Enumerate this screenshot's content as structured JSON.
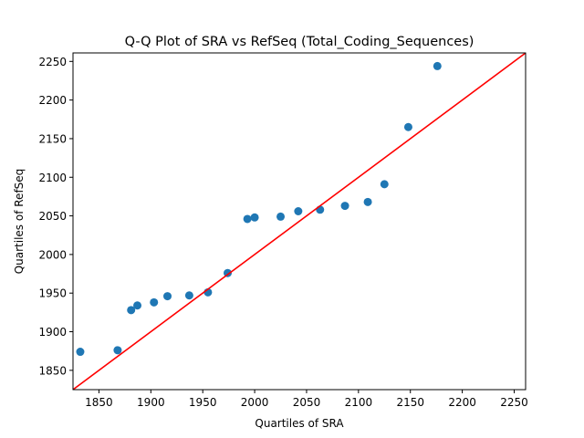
{
  "chart_data": {
    "type": "scatter",
    "title": "Q-Q Plot of SRA vs RefSeq (Total_Coding_Sequences)",
    "xlabel": "Quartiles of SRA",
    "ylabel": "Quartiles of RefSeq",
    "xlim": [
      1825,
      2261
    ],
    "ylim": [
      1825,
      2261
    ],
    "xticks": [
      1850,
      1900,
      1950,
      2000,
      2050,
      2100,
      2150,
      2200,
      2250
    ],
    "yticks": [
      1850,
      1900,
      1950,
      2000,
      2050,
      2100,
      2150,
      2200,
      2250
    ],
    "grid": false,
    "point_color": "#1f77b4",
    "line_color": "#ff0000",
    "reference_line": {
      "x": [
        1825,
        2261
      ],
      "y": [
        1825,
        2261
      ]
    },
    "points": [
      {
        "x": 1832,
        "y": 1874
      },
      {
        "x": 1868,
        "y": 1876
      },
      {
        "x": 1881,
        "y": 1928
      },
      {
        "x": 1887,
        "y": 1934
      },
      {
        "x": 1903,
        "y": 1938
      },
      {
        "x": 1916,
        "y": 1946
      },
      {
        "x": 1937,
        "y": 1947
      },
      {
        "x": 1955,
        "y": 1951
      },
      {
        "x": 1974,
        "y": 1976
      },
      {
        "x": 1993,
        "y": 2046
      },
      {
        "x": 2000,
        "y": 2048
      },
      {
        "x": 2025,
        "y": 2049
      },
      {
        "x": 2042,
        "y": 2056
      },
      {
        "x": 2063,
        "y": 2058
      },
      {
        "x": 2087,
        "y": 2063
      },
      {
        "x": 2109,
        "y": 2068
      },
      {
        "x": 2125,
        "y": 2091
      },
      {
        "x": 2148,
        "y": 2165
      },
      {
        "x": 2176,
        "y": 2244
      }
    ]
  }
}
